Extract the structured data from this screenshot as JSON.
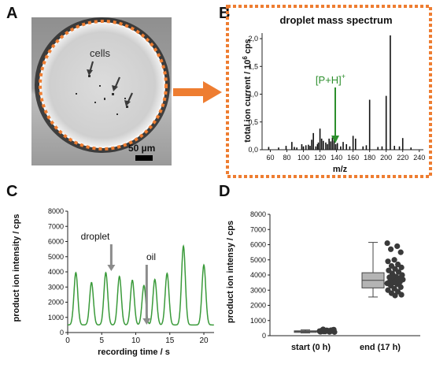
{
  "panels": {
    "a": {
      "letter": "A",
      "cells_label": "cells",
      "scale_label": "50 µm"
    },
    "b": {
      "letter": "B",
      "title": "droplet mass spectrum",
      "ylabel_main": "total ion current / 10",
      "ylabel_sup": "6",
      "ylabel_unit": " cps",
      "xlabel": "m/z",
      "annotation_main": "[P+H]",
      "annotation_sup": "+"
    },
    "c": {
      "letter": "C",
      "ylabel": "product ion intensity / cps",
      "xlabel": "recording time / s",
      "annotation_droplet": "droplet",
      "annotation_oil": "oil"
    },
    "d": {
      "letter": "D",
      "ylabel": "product ion intensy / cps"
    }
  },
  "colors": {
    "orange": "#ee7d31",
    "green_trace": "#3a9a3a",
    "green_annotation": "#2d8f2d",
    "box_fill": "#b4b4b4",
    "dot_fill": "#3a3a3a"
  },
  "chart_data": [
    {
      "type": "bar",
      "panel": "B",
      "title": "droplet mass spectrum",
      "xlabel": "m/z",
      "ylabel": "total ion current / 10^6 cps",
      "xlim": [
        50,
        245
      ],
      "ylim": [
        0,
        2.1
      ],
      "xticks": [
        "60",
        "80",
        "100",
        "120",
        "140",
        "160",
        "180",
        "200",
        "220",
        "240"
      ],
      "yticks": [
        "0,0",
        "0,5",
        "1,0",
        "1,5",
        "2,0"
      ],
      "peaks": {
        "mz": [
          58,
          70,
          79,
          86,
          89,
          92,
          98,
          100,
          103,
          106,
          108,
          110,
          112,
          115,
          117,
          118,
          120,
          122,
          124,
          127,
          129,
          131,
          133,
          135,
          137,
          139,
          141,
          145,
          148,
          152,
          156,
          160,
          163,
          172,
          176,
          180,
          190,
          195,
          200,
          205,
          210,
          216,
          220,
          230
        ],
        "intensity": [
          0.05,
          0.04,
          0.07,
          0.14,
          0.05,
          0.04,
          0.1,
          0.06,
          0.08,
          0.09,
          0.07,
          0.18,
          0.3,
          0.06,
          0.1,
          0.13,
          0.38,
          0.2,
          0.16,
          0.13,
          0.1,
          0.2,
          0.15,
          0.22,
          0.17,
          0.1,
          0.12,
          0.06,
          0.14,
          0.1,
          0.06,
          0.25,
          0.2,
          0.06,
          0.08,
          0.9,
          0.05,
          0.06,
          0.97,
          2.06,
          0.07,
          0.06,
          0.21,
          0.04
        ]
      }
    },
    {
      "type": "line",
      "panel": "C",
      "xlabel": "recording time / s",
      "ylabel": "product ion intensity / cps",
      "xlim": [
        0,
        21.5
      ],
      "ylim": [
        0,
        8000
      ],
      "xticks": [
        "0",
        "5",
        "10",
        "15",
        "20"
      ],
      "yticks": [
        "0",
        "1000",
        "2000",
        "3000",
        "4000",
        "5000",
        "6000",
        "7000",
        "8000"
      ],
      "baseline": 500,
      "peaks": [
        {
          "t": 1.2,
          "height": 3950
        },
        {
          "t": 3.5,
          "height": 3300
        },
        {
          "t": 5.6,
          "height": 3950
        },
        {
          "t": 7.6,
          "height": 3700
        },
        {
          "t": 9.5,
          "height": 3450
        },
        {
          "t": 11.2,
          "height": 3100
        },
        {
          "t": 12.8,
          "height": 3500
        },
        {
          "t": 14.6,
          "height": 3900
        },
        {
          "t": 17.0,
          "height": 5700
        },
        {
          "t": 20.0,
          "height": 4450
        }
      ],
      "droplet_marker_t": 6.4,
      "oil_marker_t": 11.6
    },
    {
      "type": "box",
      "panel": "D",
      "ylabel": "product ion intensy / cps",
      "ylim": [
        0,
        8000
      ],
      "yticks": [
        "0",
        "1000",
        "2000",
        "3000",
        "4000",
        "5000",
        "6000",
        "7000",
        "8000"
      ],
      "groups": [
        {
          "label": "start (0 h)",
          "whisker_low": 180,
          "q1": 230,
          "median": 280,
          "q3": 320,
          "whisker_high": 380,
          "points": [
            300,
            250,
            420,
            380,
            350,
            260,
            310,
            280,
            400,
            330,
            270,
            360,
            290,
            240,
            320,
            340,
            310,
            280
          ]
        },
        {
          "label": "end (17 h)",
          "whisker_low": 2550,
          "q1": 3150,
          "median": 3650,
          "q3": 4150,
          "whisker_high": 6150,
          "points": [
            6100,
            5900,
            5700,
            5500,
            5000,
            4900,
            4700,
            4600,
            4500,
            4400,
            4300,
            4200,
            4100,
            4000,
            3900,
            3850,
            3800,
            3750,
            3700,
            3650,
            3600,
            3550,
            3500,
            3450,
            3400,
            3300,
            3200,
            3100,
            3000,
            2900,
            2800,
            2700,
            2650
          ]
        }
      ]
    }
  ]
}
